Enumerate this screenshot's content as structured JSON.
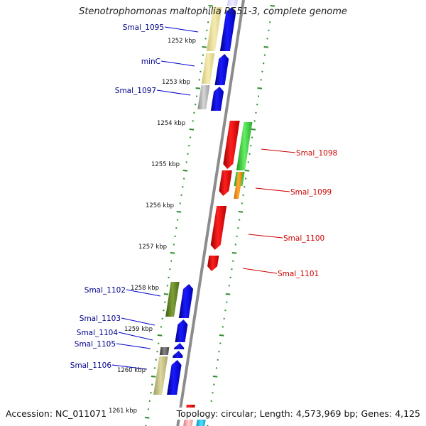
{
  "title": "Stenotrophomonas maltophilia R551-3, complete genome",
  "footer": {
    "accession": "Accession: NC_011071",
    "topology": "Topology: circular; Length: 4,573,969 bp; Genes: 4,125"
  },
  "colors": {
    "backbone": "#8c8c8c",
    "dot_outer": "#2e8b2e",
    "dot_inner": "#2e8b2e",
    "minus_label": "#00008b",
    "plus_label": "#cc0000",
    "leader_minus": "#0000cc",
    "leader_plus": "#cc0000"
  },
  "kbp_labels": [
    "1252 kbp",
    "1253 kbp",
    "1254 kbp",
    "1255 kbp",
    "1256 kbp",
    "1257 kbp",
    "1258 kbp",
    "1259 kbp",
    "1260 kbp",
    "1261 kbp"
  ],
  "gene_labels": [
    {
      "name": "Smal_1095",
      "strand": "minus"
    },
    {
      "name": "minC",
      "strand": "minus"
    },
    {
      "name": "Smal_1097",
      "strand": "minus"
    },
    {
      "name": "Smal_1098",
      "strand": "plus"
    },
    {
      "name": "Smal_1099",
      "strand": "plus"
    },
    {
      "name": "Smal_1100",
      "strand": "plus"
    },
    {
      "name": "Smal_1101",
      "strand": "plus"
    },
    {
      "name": "Smal_1102",
      "strand": "minus"
    },
    {
      "name": "Smal_1103",
      "strand": "minus"
    },
    {
      "name": "Smal_1104",
      "strand": "minus"
    },
    {
      "name": "Smal_1105",
      "strand": "minus"
    },
    {
      "name": "Smal_1106",
      "strand": "minus"
    }
  ]
}
